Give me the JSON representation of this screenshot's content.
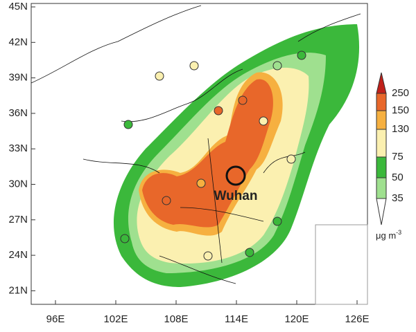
{
  "map": {
    "lat_labels": [
      "45N",
      "42N",
      "39N",
      "36N",
      "33N",
      "30N",
      "27N",
      "24N",
      "21N"
    ],
    "lon_labels": [
      "96E",
      "102E",
      "108E",
      "114E",
      "120E",
      "126E"
    ],
    "city": "Wuhan",
    "colorbar": {
      "labels": [
        250,
        150,
        130,
        75,
        50,
        35
      ],
      "colors": [
        "#c0201a",
        "#e8672a",
        "#f6b040",
        "#fbf0b0",
        "#3bb83b",
        "#9fe08f",
        "#ffffff"
      ],
      "unit": "μg m",
      "unit_exp": "-3"
    }
  }
}
